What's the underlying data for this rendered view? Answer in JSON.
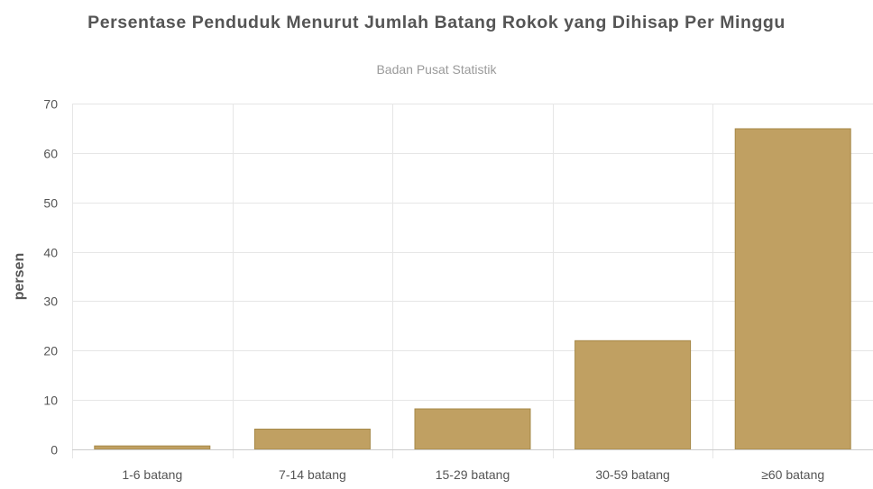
{
  "chart_data": {
    "type": "bar",
    "title": "Persentase Penduduk Menurut Jumlah Batang Rokok yang Dihisap Per Minggu",
    "subtitle": "Badan Pusat Statistik",
    "xlabel": "",
    "ylabel": "persen",
    "categories": [
      "1-6 batang",
      "7-14 batang",
      "15-29 batang",
      "30-59 batang",
      "≥60 batang"
    ],
    "values": [
      0.7,
      4.1,
      8.2,
      22.0,
      64.9
    ],
    "ylim": [
      0,
      70
    ],
    "yticks": [
      0,
      10,
      20,
      30,
      40,
      50,
      60,
      70
    ],
    "grid": true,
    "legend": "none",
    "colors": {
      "bar_fill": "#c0a062",
      "bar_stroke": "#a68848",
      "grid": "#e6e6e6",
      "axis": "#cccccc"
    }
  }
}
